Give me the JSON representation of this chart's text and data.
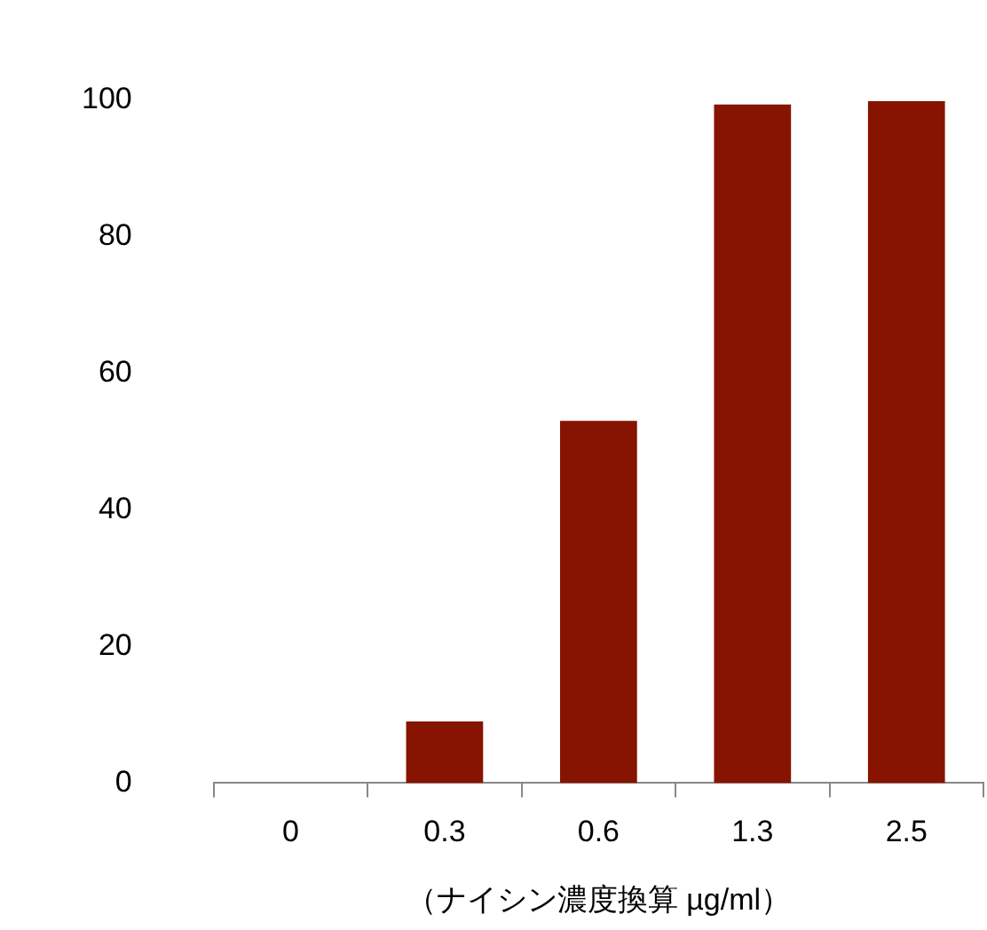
{
  "chart_data": {
    "type": "bar",
    "xlabel": "（ナイシン濃度換算 µg/ml）",
    "categories": [
      "0",
      "0.3",
      "0.6",
      "1.3",
      "2.5"
    ],
    "values": [
      0,
      9,
      53,
      99.3,
      99.8
    ],
    "color": "#871400",
    "ylim": [
      0,
      100
    ],
    "yticks": [
      0,
      20,
      40,
      60,
      80,
      100
    ],
    "grid": false,
    "legend": false
  }
}
